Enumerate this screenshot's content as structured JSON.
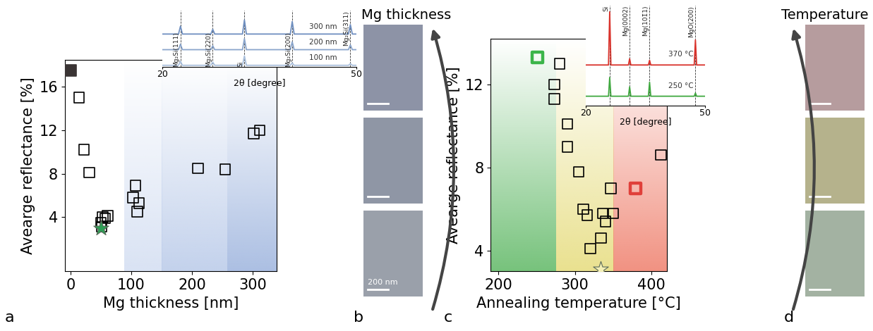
{
  "chart_data": [
    {
      "type": "scatter",
      "panel": "a",
      "x_label": "Mg thickness [nm]",
      "y_label": "Avearge reflectance [%]",
      "xlim": [
        -10,
        340
      ],
      "xticks": [
        0,
        100,
        200,
        300
      ],
      "ylim": [
        -1,
        18.5
      ],
      "yticks": [
        4,
        8,
        12,
        16
      ],
      "shaded_regions": [
        {
          "x": [
            88,
            150
          ],
          "color": "#d3def2"
        },
        {
          "x": [
            150,
            258
          ],
          "color": "#b9cae9"
        },
        {
          "x": [
            258,
            340
          ],
          "color": "#9db4de"
        }
      ],
      "series": [
        {
          "marker": "filled_square",
          "color": "#3a3434",
          "x": [
            0
          ],
          "values": [
            17.5
          ]
        },
        {
          "marker": "square",
          "color": "#000000",
          "x": [
            14,
            22,
            31,
            50,
            51,
            53,
            57,
            61,
            103,
            107,
            110,
            113,
            210,
            255,
            302,
            312
          ],
          "values": [
            15.0,
            10.2,
            8.1,
            3.5,
            3.1,
            4.0,
            3.9,
            4.1,
            5.8,
            6.9,
            4.5,
            5.3,
            8.5,
            8.4,
            11.7,
            12.0
          ]
        },
        {
          "marker": "star",
          "color": "#2e9e55",
          "x": [
            50
          ],
          "values": [
            3.0
          ]
        }
      ],
      "inset": {
        "type": "line",
        "x_label": "2θ [degree]",
        "xlim": [
          20,
          50
        ],
        "xticks": [
          20,
          50
        ],
        "ylim": [
          0,
          3.6
        ],
        "yticks": [],
        "tick_labels": "x",
        "x": [
          20,
          22.5,
          22.8,
          23.1,
          27.5,
          27.8,
          28.1,
          32.4,
          32.7,
          33.0,
          39.8,
          40.1,
          40.4,
          48.8,
          49.1,
          49.4,
          50
        ],
        "series": [
          {
            "name": "100 nm",
            "color": "#a9bfdc",
            "values": [
              0.1,
              0.1,
              0.35,
              0.1,
              0.1,
              0.3,
              0.1,
              0.1,
              0.7,
              0.1,
              0.1,
              0.25,
              0.1,
              0.1,
              0.2,
              0.1,
              0.1
            ]
          },
          {
            "name": "200 nm",
            "color": "#8aa5cc",
            "values": [
              1.1,
              1.1,
              1.45,
              1.1,
              1.1,
              1.35,
              1.1,
              1.1,
              1.8,
              1.1,
              1.1,
              1.6,
              1.1,
              1.1,
              1.4,
              1.1,
              1.1
            ]
          },
          {
            "name": "300 nm",
            "color": "#6f8fc0",
            "values": [
              2.1,
              2.1,
              2.6,
              2.1,
              2.1,
              2.4,
              2.1,
              2.1,
              3.0,
              2.1,
              2.1,
              2.9,
              2.1,
              2.1,
              2.7,
              2.1,
              2.1
            ]
          }
        ],
        "reference_lines": [
          {
            "label": "Mg₂Si(111)",
            "x": 22.8
          },
          {
            "label": "Mg₂Si(220)",
            "x": 27.8
          },
          {
            "label": "Si",
            "x": 32.7
          },
          {
            "label": "Mg₂Si(200)",
            "x": 40.1
          },
          {
            "label": "Mg₂Si(311)",
            "x": 49.1
          }
        ]
      }
    },
    {
      "type": "scatter",
      "panel": "c",
      "x_label": "Annealing temperature [°C]",
      "y_label": "Avearge reflectance [%]",
      "xlim": [
        190,
        420
      ],
      "xticks": [
        200,
        300,
        400
      ],
      "ylim": [
        3.0,
        14.2
      ],
      "yticks": [
        4,
        8,
        12
      ],
      "shaded_regions": [
        {
          "x": [
            190,
            275
          ],
          "color": "#5fb865"
        },
        {
          "x": [
            275,
            350
          ],
          "color": "#e6dc7c"
        },
        {
          "x": [
            350,
            420
          ],
          "color": "#ef7f6c"
        }
      ],
      "series": [
        {
          "marker": "bold_square",
          "color": "#3cb54a",
          "x": [
            251
          ],
          "values": [
            13.3
          ]
        },
        {
          "marker": "square",
          "color": "#000000",
          "x": [
            280,
            273,
            273,
            290,
            290,
            305,
            311,
            316,
            320,
            334,
            336,
            340,
            347,
            350,
            412
          ],
          "values": [
            13.0,
            12.0,
            11.3,
            10.1,
            9.0,
            7.8,
            6.0,
            5.7,
            4.1,
            4.6,
            5.8,
            5.4,
            7.0,
            5.8,
            8.6
          ]
        },
        {
          "marker": "bold_square",
          "color": "#e0403a",
          "x": [
            379
          ],
          "values": [
            7.0
          ]
        },
        {
          "marker": "star",
          "color": "#f3efb5",
          "x": [
            333
          ],
          "values": [
            3.1
          ]
        }
      ],
      "inset": {
        "type": "line",
        "x_label": "2θ [degree]",
        "xlim": [
          20,
          50
        ],
        "xticks": [
          20,
          50
        ],
        "ylim": [
          0,
          3.2
        ],
        "yticks": [],
        "tick_labels": "x",
        "x": [
          20,
          25.7,
          26,
          26.3,
          30.7,
          31,
          31.3,
          35.7,
          36,
          36.3,
          47.2,
          47.5,
          47.8,
          50
        ],
        "series": [
          {
            "name": "370 °C",
            "color": "#d9322b",
            "values": [
              1.3,
              1.3,
              3.0,
              1.3,
              1.3,
              1.5,
              1.3,
              1.3,
              1.45,
              1.3,
              1.3,
              2.1,
              1.3,
              1.3
            ]
          },
          {
            "name": "250 °C",
            "color": "#3fa83f",
            "values": [
              0.3,
              0.3,
              0.9,
              0.3,
              0.3,
              0.6,
              0.3,
              0.3,
              0.75,
              0.3,
              0.3,
              0.4,
              0.3,
              0.3
            ]
          }
        ],
        "reference_lines": [
          {
            "label": "Si",
            "x": 26
          },
          {
            "label": "Mg(0002)",
            "x": 31
          },
          {
            "label": "Mg(101̄1)",
            "x": 36
          },
          {
            "label": "MgO(200)",
            "x": 47.5
          }
        ]
      }
    }
  ],
  "images": [
    {
      "panel": "b",
      "title": "Mg thickness",
      "scale_bar_label": "200 nm"
    },
    {
      "panel": "d",
      "title": "Temperature"
    }
  ]
}
